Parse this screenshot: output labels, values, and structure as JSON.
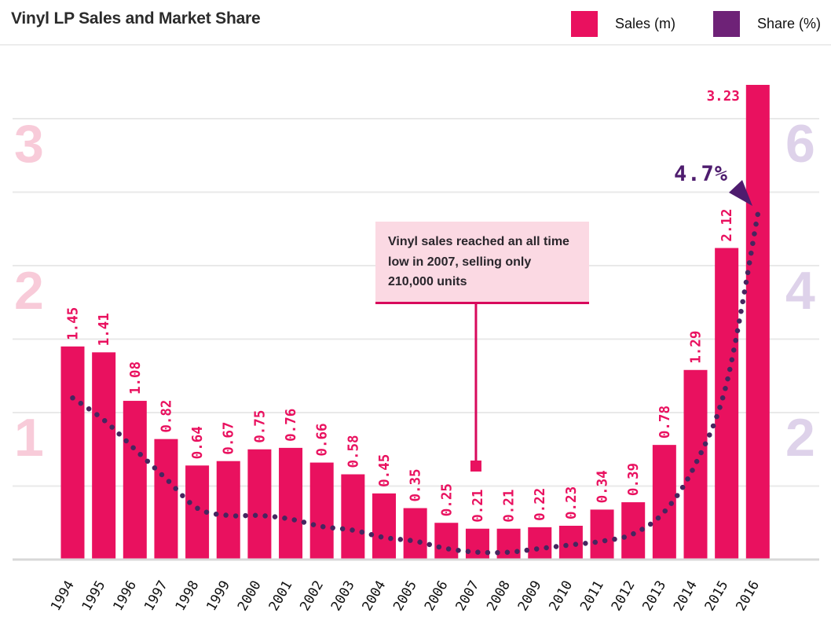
{
  "header": {
    "title": "Vinyl LP Sales and Market Share"
  },
  "legend": {
    "items": [
      {
        "label": "Sales (m)",
        "color": "#e9115f"
      },
      {
        "label": "Share (%)",
        "color": "#6e2277"
      }
    ]
  },
  "annotation": {
    "text": "Vinyl sales reached an all time low in 2007, selling only 210,000 units",
    "target_year": "2007"
  },
  "peak_callout": {
    "label": "4.7%"
  },
  "chart_data": {
    "type": "bar",
    "title": "Vinyl LP Sales and Market Share",
    "categories": [
      "1994",
      "1995",
      "1996",
      "1997",
      "1998",
      "1999",
      "2000",
      "2001",
      "2002",
      "2003",
      "2004",
      "2005",
      "2006",
      "2007",
      "2008",
      "2009",
      "2010",
      "2011",
      "2012",
      "2013",
      "2014",
      "2015",
      "2016"
    ],
    "series": [
      {
        "name": "Sales (m)",
        "type": "bar",
        "axis": "left",
        "color": "#e9115f",
        "values": [
          1.45,
          1.41,
          1.08,
          0.82,
          0.64,
          0.67,
          0.75,
          0.76,
          0.66,
          0.58,
          0.45,
          0.35,
          0.25,
          0.21,
          0.21,
          0.22,
          0.23,
          0.34,
          0.39,
          0.78,
          1.29,
          2.12,
          3.23
        ]
      },
      {
        "name": "Share (%)",
        "type": "dotted_line",
        "axis": "right",
        "color": "#46265f",
        "values": [
          2.2,
          1.9,
          1.5,
          1.1,
          0.7,
          0.6,
          0.6,
          0.55,
          0.45,
          0.4,
          0.3,
          0.25,
          0.15,
          0.1,
          0.1,
          0.15,
          0.2,
          0.25,
          0.35,
          0.65,
          1.3,
          2.4,
          4.7
        ],
        "labeled_point": {
          "year": "2016",
          "value": 4.7,
          "label": "4.7%"
        }
      }
    ],
    "left_axis": {
      "ticks": [
        "1",
        "2",
        "3"
      ],
      "range": [
        0,
        3.5
      ],
      "color": "#f8cbd9"
    },
    "right_axis": {
      "ticks": [
        "2",
        "4",
        "6"
      ],
      "range": [
        0,
        7
      ],
      "color": "#ded2ea"
    },
    "grid": true,
    "legend_position": "top-right"
  }
}
